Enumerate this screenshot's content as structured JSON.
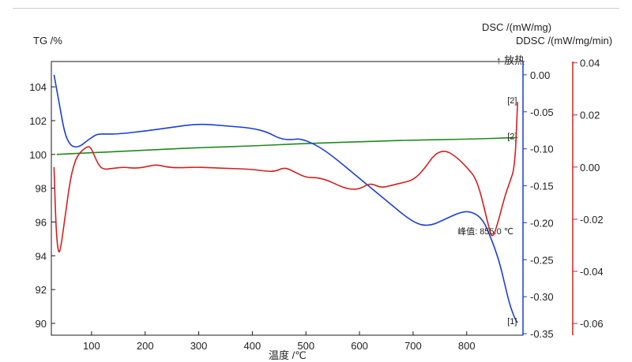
{
  "chart_data": {
    "type": "line",
    "xlabel": "温度 /℃",
    "x_ticks": [
      100,
      200,
      300,
      400,
      500,
      600,
      700,
      800
    ],
    "xlim": [
      25,
      905
    ],
    "axes": {
      "tg": {
        "label": "TG /%",
        "lim": [
          89.3,
          105.5
        ],
        "ticks": [
          90,
          92,
          94,
          96,
          98,
          100,
          102,
          104
        ],
        "tick_labels": [
          "90",
          "92",
          "94",
          "96",
          "98",
          "100",
          "102",
          "104"
        ],
        "color": "#222222"
      },
      "dsc": {
        "label": "DSC /(mW/mg)",
        "lim": [
          -0.352,
          0.018
        ],
        "ticks": [
          0.0,
          -0.05,
          -0.1,
          -0.15,
          -0.2,
          -0.25,
          -0.3,
          -0.35
        ],
        "tick_labels": [
          "0.00",
          "-0.05",
          "-0.10",
          "-0.15",
          "-0.20",
          "-0.25",
          "-0.30",
          "-0.35"
        ],
        "color": "#1a3fd6"
      },
      "ddsc": {
        "label": "DDSC /(mW/mg/min)",
        "lim": [
          -0.0645,
          0.0405
        ],
        "ticks": [
          0.04,
          0.02,
          0.0,
          -0.02,
          -0.04,
          -0.06
        ],
        "tick_labels": [
          "0.04",
          "0.02",
          "0.00",
          "-0.02",
          "-0.04",
          "-0.06"
        ],
        "color": "#d42020"
      }
    },
    "exo_label": "↑ 放热",
    "series": [
      {
        "axis": "tg",
        "color": "#1e8a1e",
        "end_label": "[2]",
        "x": [
          35,
          100,
          200,
          300,
          400,
          500,
          600,
          700,
          800,
          895
        ],
        "y": [
          100.0,
          100.1,
          100.25,
          100.4,
          100.5,
          100.65,
          100.75,
          100.85,
          100.9,
          101.0
        ]
      },
      {
        "axis": "dsc",
        "color": "#1a3fd6",
        "end_label": "[1]",
        "x": [
          30,
          40,
          50,
          60,
          70,
          80,
          90,
          100,
          110,
          130,
          150,
          200,
          250,
          300,
          350,
          400,
          430,
          450,
          470,
          490,
          520,
          550,
          600,
          650,
          700,
          730,
          760,
          790,
          810,
          830,
          845,
          860,
          870,
          880,
          890,
          895
        ],
        "y": [
          0.0,
          -0.04,
          -0.08,
          -0.095,
          -0.098,
          -0.096,
          -0.09,
          -0.085,
          -0.08,
          -0.08,
          -0.08,
          -0.076,
          -0.071,
          -0.066,
          -0.069,
          -0.072,
          -0.078,
          -0.086,
          -0.088,
          -0.086,
          -0.095,
          -0.11,
          -0.14,
          -0.17,
          -0.2,
          -0.205,
          -0.195,
          -0.185,
          -0.185,
          -0.195,
          -0.22,
          -0.25,
          -0.28,
          -0.31,
          -0.33,
          -0.335
        ]
      },
      {
        "axis": "ddsc",
        "color": "#d42020",
        "end_label": "[2]",
        "x": [
          30,
          34,
          38,
          42,
          50,
          60,
          70,
          80,
          90,
          95,
          100,
          110,
          120,
          140,
          160,
          180,
          200,
          220,
          240,
          260,
          300,
          350,
          400,
          440,
          460,
          480,
          500,
          520,
          540,
          560,
          580,
          600,
          620,
          640,
          660,
          680,
          700,
          720,
          740,
          760,
          780,
          800,
          820,
          840,
          848,
          860,
          870,
          880,
          890,
          895
        ],
        "y": [
          0.0,
          -0.025,
          -0.033,
          -0.032,
          -0.02,
          -0.005,
          0.003,
          0.006,
          0.0075,
          0.008,
          0.007,
          0.002,
          -0.001,
          -0.0005,
          0.0,
          -0.0005,
          0.0,
          0.001,
          0.0,
          -0.0003,
          0.0,
          -0.0005,
          -0.0008,
          -0.002,
          0.0,
          -0.002,
          -0.004,
          -0.004,
          -0.005,
          -0.007,
          -0.0085,
          -0.0085,
          -0.006,
          -0.008,
          -0.007,
          -0.006,
          -0.005,
          -0.001,
          0.005,
          0.0065,
          0.004,
          0.0,
          -0.005,
          -0.022,
          -0.028,
          -0.02,
          -0.012,
          -0.006,
          0.0,
          0.025
        ]
      }
    ],
    "annotation": {
      "text": "峰值: 855.0 ℃",
      "x": 855.0,
      "color": "#d42020"
    }
  }
}
